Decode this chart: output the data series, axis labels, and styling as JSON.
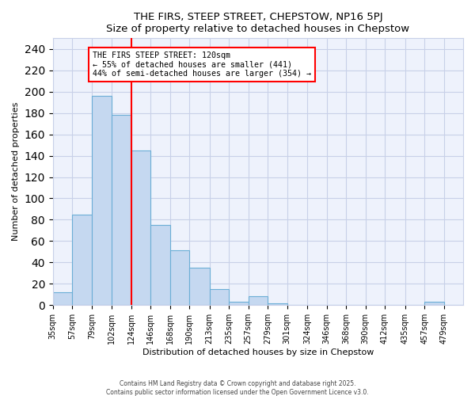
{
  "title": "THE FIRS, STEEP STREET, CHEPSTOW, NP16 5PJ",
  "subtitle": "Size of property relative to detached houses in Chepstow",
  "xlabel": "Distribution of detached houses by size in Chepstow",
  "ylabel": "Number of detached properties",
  "bar_values": [
    12,
    85,
    196,
    178,
    145,
    75,
    51,
    35,
    15,
    3,
    8,
    2,
    0,
    0,
    0,
    0,
    0,
    0,
    0,
    3,
    0
  ],
  "bin_labels": [
    "35sqm",
    "57sqm",
    "79sqm",
    "102sqm",
    "124sqm",
    "146sqm",
    "168sqm",
    "190sqm",
    "213sqm",
    "235sqm",
    "257sqm",
    "279sqm",
    "301sqm",
    "324sqm",
    "346sqm",
    "368sqm",
    "390sqm",
    "412sqm",
    "435sqm",
    "457sqm",
    "479sqm"
  ],
  "bin_edges": [
    35,
    57,
    79,
    102,
    124,
    146,
    168,
    190,
    213,
    235,
    257,
    279,
    301,
    324,
    346,
    368,
    390,
    412,
    435,
    457,
    479,
    501
  ],
  "bar_color": "#c5d8f0",
  "bar_edge_color": "#6baed6",
  "vline_x": 124,
  "vline_color": "red",
  "annotation_title": "THE FIRS STEEP STREET: 120sqm",
  "annotation_line2": "← 55% of detached houses are smaller (441)",
  "annotation_line3": "44% of semi-detached houses are larger (354) →",
  "ylim": [
    0,
    250
  ],
  "yticks": [
    0,
    20,
    40,
    60,
    80,
    100,
    120,
    140,
    160,
    180,
    200,
    220,
    240
  ],
  "footer_line1": "Contains HM Land Registry data © Crown copyright and database right 2025.",
  "footer_line2": "Contains public sector information licensed under the Open Government Licence v3.0.",
  "bg_color": "#eef2fc",
  "grid_color": "#c8d0e8"
}
